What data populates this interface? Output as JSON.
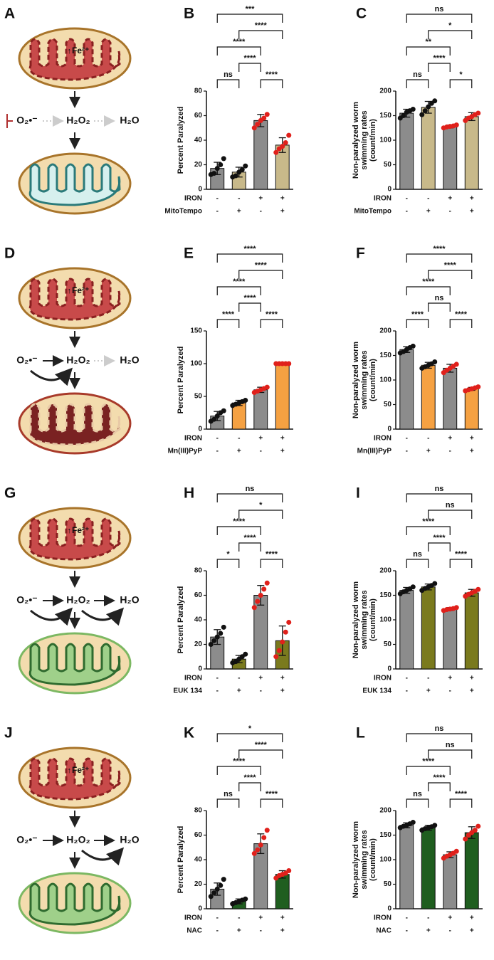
{
  "diagrams": [
    {
      "panel": "A",
      "iron": "Fe²⁺",
      "species": [
        {
          "text": "O₂•⁻",
          "color": "#111111"
        },
        {
          "text": "H₂O₂",
          "color": "#c4c4c4"
        },
        {
          "text": "H₂O",
          "color": "#d0d0d0"
        }
      ]
    },
    {
      "panel": "D",
      "iron": "Fe²⁺",
      "species": [
        {
          "text": "O₂•⁻",
          "color": "#111111"
        },
        {
          "text": "H₂O₂",
          "color": "#111111"
        },
        {
          "text": "H₂O",
          "color": "#c8c8c8"
        }
      ]
    },
    {
      "panel": "G",
      "iron": "Fe²⁺",
      "species": [
        {
          "text": "O₂•⁻",
          "color": "#111111"
        },
        {
          "text": "H₂O₂",
          "color": "#111111"
        },
        {
          "text": "H₂O",
          "color": "#111111"
        }
      ]
    },
    {
      "panel": "J",
      "iron": "Fe²⁺",
      "species": [
        {
          "text": "O₂•⁻",
          "color": "#111111"
        },
        {
          "text": "H₂O₂",
          "color": "#111111"
        },
        {
          "text": "H₂O",
          "color": "#111111"
        }
      ]
    }
  ],
  "chart_data": [
    {
      "type": "bar",
      "panel": "B",
      "ylabel": [
        "Percent Paralyzed"
      ],
      "values": [
        17,
        14,
        56,
        36
      ],
      "errors": [
        5,
        4,
        5,
        6
      ],
      "points": [
        [
          12,
          13,
          17,
          20,
          25
        ],
        [
          10,
          11,
          14,
          16,
          19
        ],
        [
          50,
          53,
          56,
          58,
          61
        ],
        [
          30,
          33,
          35,
          38,
          44
        ]
      ],
      "colors": [
        "#8c8c8c",
        "#c8b98a",
        "#8c8c8c",
        "#c8b98a"
      ],
      "point_colors": [
        "#111111",
        "#111111",
        "#e0201b",
        "#e0201b"
      ],
      "ylim": [
        0,
        80
      ],
      "yticks": [
        0,
        20,
        40,
        60,
        80
      ],
      "conditions": [
        {
          "name": "IRON",
          "levels": [
            "-",
            "-",
            "+",
            "+"
          ]
        },
        {
          "name": "MitoTempo",
          "levels": [
            "-",
            "+",
            "-",
            "+"
          ]
        }
      ],
      "comparisons": [
        {
          "from": 0,
          "to": 1,
          "label": "ns"
        },
        {
          "from": 2,
          "to": 3,
          "label": "****"
        },
        {
          "from": 1,
          "to": 2,
          "label": "****"
        },
        {
          "from": 0,
          "to": 2,
          "label": "****"
        },
        {
          "from": 1,
          "to": 3,
          "label": "****"
        },
        {
          "from": 0,
          "to": 3,
          "label": "***"
        }
      ]
    },
    {
      "type": "bar",
      "panel": "C",
      "ylabel": [
        "Non-paralyzed worm",
        "swimming rates",
        "(count/min)"
      ],
      "values": [
        155,
        167,
        128,
        148
      ],
      "errors": [
        8,
        12,
        3,
        8
      ],
      "points": [
        [
          145,
          150,
          157,
          160,
          163
        ],
        [
          152,
          160,
          168,
          175,
          180
        ],
        [
          125,
          127,
          128,
          129,
          131
        ],
        [
          140,
          145,
          148,
          152,
          155
        ]
      ],
      "colors": [
        "#8c8c8c",
        "#c8b98a",
        "#8c8c8c",
        "#c8b98a"
      ],
      "point_colors": [
        "#111111",
        "#111111",
        "#e0201b",
        "#e0201b"
      ],
      "ylim": [
        0,
        200
      ],
      "yticks": [
        0,
        50,
        100,
        150,
        200
      ],
      "conditions": [
        {
          "name": "IRON",
          "levels": [
            "-",
            "-",
            "+",
            "+"
          ]
        },
        {
          "name": "MitoTempo",
          "levels": [
            "-",
            "+",
            "-",
            "+"
          ]
        }
      ],
      "comparisons": [
        {
          "from": 0,
          "to": 1,
          "label": "ns"
        },
        {
          "from": 2,
          "to": 3,
          "label": "*"
        },
        {
          "from": 1,
          "to": 2,
          "label": "****"
        },
        {
          "from": 0,
          "to": 2,
          "label": "**"
        },
        {
          "from": 1,
          "to": 3,
          "label": "*"
        },
        {
          "from": 0,
          "to": 3,
          "label": "ns"
        }
      ]
    },
    {
      "type": "bar",
      "panel": "E",
      "ylabel": [
        "Percent Paralyzed"
      ],
      "values": [
        20,
        40,
        60,
        100
      ],
      "errors": [
        7,
        4,
        4,
        0
      ],
      "points": [
        [
          12,
          15,
          20,
          25,
          28
        ],
        [
          36,
          38,
          40,
          42,
          44
        ],
        [
          56,
          58,
          60,
          62,
          64
        ],
        [
          100,
          100,
          100,
          100,
          100
        ]
      ],
      "colors": [
        "#8c8c8c",
        "#f5a142",
        "#8c8c8c",
        "#f5a142"
      ],
      "point_colors": [
        "#111111",
        "#111111",
        "#e0201b",
        "#e0201b"
      ],
      "ylim": [
        0,
        150
      ],
      "yticks": [
        0,
        50,
        100,
        150
      ],
      "conditions": [
        {
          "name": "IRON",
          "levels": [
            "-",
            "-",
            "+",
            "+"
          ]
        },
        {
          "name": "Mn(III)PyP",
          "levels": [
            "-",
            "+",
            "-",
            "+"
          ]
        }
      ],
      "comparisons": [
        {
          "from": 0,
          "to": 1,
          "label": "****"
        },
        {
          "from": 2,
          "to": 3,
          "label": "****"
        },
        {
          "from": 1,
          "to": 2,
          "label": "****"
        },
        {
          "from": 0,
          "to": 2,
          "label": "****"
        },
        {
          "from": 1,
          "to": 3,
          "label": "****"
        },
        {
          "from": 0,
          "to": 3,
          "label": "****"
        }
      ]
    },
    {
      "type": "bar",
      "panel": "F",
      "ylabel": [
        "Non-paralyzed worm",
        "swimming rates",
        "(count/min)"
      ],
      "values": [
        162,
        130,
        124,
        82
      ],
      "errors": [
        6,
        6,
        8,
        3
      ],
      "points": [
        [
          155,
          158,
          162,
          166,
          169
        ],
        [
          124,
          127,
          130,
          133,
          137
        ],
        [
          115,
          120,
          124,
          128,
          132
        ],
        [
          78,
          80,
          82,
          84,
          86
        ]
      ],
      "colors": [
        "#8c8c8c",
        "#f5a142",
        "#8c8c8c",
        "#f5a142"
      ],
      "point_colors": [
        "#111111",
        "#111111",
        "#e0201b",
        "#e0201b"
      ],
      "ylim": [
        0,
        200
      ],
      "yticks": [
        0,
        50,
        100,
        150,
        200
      ],
      "conditions": [
        {
          "name": "IRON",
          "levels": [
            "-",
            "-",
            "+",
            "+"
          ]
        },
        {
          "name": "Mn(III)PyP",
          "levels": [
            "-",
            "+",
            "-",
            "+"
          ]
        }
      ],
      "comparisons": [
        {
          "from": 0,
          "to": 1,
          "label": "****"
        },
        {
          "from": 2,
          "to": 3,
          "label": "****"
        },
        {
          "from": 1,
          "to": 2,
          "label": "ns"
        },
        {
          "from": 0,
          "to": 2,
          "label": "****"
        },
        {
          "from": 1,
          "to": 3,
          "label": "****"
        },
        {
          "from": 0,
          "to": 3,
          "label": "****"
        }
      ]
    },
    {
      "type": "bar",
      "panel": "H",
      "ylabel": [
        "Percent Paralyzed"
      ],
      "values": [
        26,
        8,
        60,
        23
      ],
      "errors": [
        6,
        3,
        8,
        12
      ],
      "points": [
        [
          20,
          23,
          26,
          29,
          34
        ],
        [
          5,
          6,
          8,
          10,
          12
        ],
        [
          50,
          55,
          60,
          65,
          70
        ],
        [
          10,
          15,
          22,
          30,
          38
        ]
      ],
      "colors": [
        "#8c8c8c",
        "#7a7a1e",
        "#8c8c8c",
        "#7a7a1e"
      ],
      "point_colors": [
        "#111111",
        "#111111",
        "#e0201b",
        "#e0201b"
      ],
      "ylim": [
        0,
        80
      ],
      "yticks": [
        0,
        20,
        40,
        60,
        80
      ],
      "conditions": [
        {
          "name": "IRON",
          "levels": [
            "-",
            "-",
            "+",
            "+"
          ]
        },
        {
          "name": "EUK 134",
          "levels": [
            "-",
            "+",
            "-",
            "+"
          ]
        }
      ],
      "comparisons": [
        {
          "from": 0,
          "to": 1,
          "label": "*"
        },
        {
          "from": 2,
          "to": 3,
          "label": "****"
        },
        {
          "from": 1,
          "to": 2,
          "label": "****"
        },
        {
          "from": 0,
          "to": 2,
          "label": "****"
        },
        {
          "from": 1,
          "to": 3,
          "label": "*"
        },
        {
          "from": 0,
          "to": 3,
          "label": "ns"
        }
      ]
    },
    {
      "type": "bar",
      "panel": "I",
      "ylabel": [
        "Non-paralyzed worm",
        "swimming rates",
        "(count/min)"
      ],
      "values": [
        160,
        167,
        122,
        155
      ],
      "errors": [
        6,
        6,
        3,
        7
      ],
      "points": [
        [
          153,
          157,
          160,
          163,
          167
        ],
        [
          160,
          164,
          167,
          170,
          174
        ],
        [
          119,
          121,
          122,
          123,
          125
        ],
        [
          148,
          152,
          155,
          158,
          162
        ]
      ],
      "colors": [
        "#8c8c8c",
        "#7a7a1e",
        "#8c8c8c",
        "#7a7a1e"
      ],
      "point_colors": [
        "#111111",
        "#111111",
        "#e0201b",
        "#e0201b"
      ],
      "ylim": [
        0,
        200
      ],
      "yticks": [
        0,
        50,
        100,
        150,
        200
      ],
      "conditions": [
        {
          "name": "IRON",
          "levels": [
            "-",
            "-",
            "+",
            "+"
          ]
        },
        {
          "name": "EUK 134",
          "levels": [
            "-",
            "+",
            "-",
            "+"
          ]
        }
      ],
      "comparisons": [
        {
          "from": 0,
          "to": 1,
          "label": "ns"
        },
        {
          "from": 2,
          "to": 3,
          "label": "****"
        },
        {
          "from": 1,
          "to": 2,
          "label": "****"
        },
        {
          "from": 0,
          "to": 2,
          "label": "****"
        },
        {
          "from": 1,
          "to": 3,
          "label": "ns"
        },
        {
          "from": 0,
          "to": 3,
          "label": "ns"
        }
      ]
    },
    {
      "type": "bar",
      "panel": "K",
      "ylabel": [
        "Percent Paralyzed"
      ],
      "values": [
        16,
        6,
        53,
        28
      ],
      "errors": [
        5,
        2,
        8,
        3
      ],
      "points": [
        [
          10,
          13,
          16,
          19,
          24
        ],
        [
          4,
          5,
          6,
          7,
          8
        ],
        [
          45,
          48,
          52,
          58,
          64
        ],
        [
          25,
          27,
          28,
          29,
          31
        ]
      ],
      "colors": [
        "#8c8c8c",
        "#1f5e1f",
        "#8c8c8c",
        "#1f5e1f"
      ],
      "point_colors": [
        "#111111",
        "#111111",
        "#e0201b",
        "#e0201b"
      ],
      "ylim": [
        0,
        80
      ],
      "yticks": [
        0,
        20,
        40,
        60,
        80
      ],
      "conditions": [
        {
          "name": "IRON",
          "levels": [
            "-",
            "-",
            "+",
            "+"
          ]
        },
        {
          "name": "NAC",
          "levels": [
            "-",
            "+",
            "-",
            "+"
          ]
        }
      ],
      "comparisons": [
        {
          "from": 0,
          "to": 1,
          "label": "ns"
        },
        {
          "from": 2,
          "to": 3,
          "label": "****"
        },
        {
          "from": 1,
          "to": 2,
          "label": "****"
        },
        {
          "from": 0,
          "to": 2,
          "label": "****"
        },
        {
          "from": 1,
          "to": 3,
          "label": "****"
        },
        {
          "from": 0,
          "to": 3,
          "label": "*"
        }
      ]
    },
    {
      "type": "bar",
      "panel": "L",
      "ylabel": [
        "Non-paralyzed worm",
        "swimming rates",
        "(count/min)"
      ],
      "values": [
        170,
        165,
        110,
        155
      ],
      "errors": [
        5,
        5,
        6,
        12
      ],
      "points": [
        [
          165,
          168,
          170,
          173,
          176
        ],
        [
          160,
          163,
          165,
          167,
          170
        ],
        [
          103,
          107,
          110,
          113,
          117
        ],
        [
          142,
          150,
          155,
          160,
          168
        ]
      ],
      "colors": [
        "#8c8c8c",
        "#1f5e1f",
        "#8c8c8c",
        "#1f5e1f"
      ],
      "point_colors": [
        "#111111",
        "#111111",
        "#e0201b",
        "#e0201b"
      ],
      "ylim": [
        0,
        200
      ],
      "yticks": [
        0,
        50,
        100,
        150,
        200
      ],
      "conditions": [
        {
          "name": "IRON",
          "levels": [
            "-",
            "-",
            "+",
            "+"
          ]
        },
        {
          "name": "NAC",
          "levels": [
            "-",
            "+",
            "-",
            "+"
          ]
        }
      ],
      "comparisons": [
        {
          "from": 0,
          "to": 1,
          "label": "ns"
        },
        {
          "from": 2,
          "to": 3,
          "label": "****"
        },
        {
          "from": 1,
          "to": 2,
          "label": "****"
        },
        {
          "from": 0,
          "to": 2,
          "label": "****"
        },
        {
          "from": 1,
          "to": 3,
          "label": "ns"
        },
        {
          "from": 0,
          "to": 3,
          "label": "ns"
        }
      ]
    }
  ]
}
